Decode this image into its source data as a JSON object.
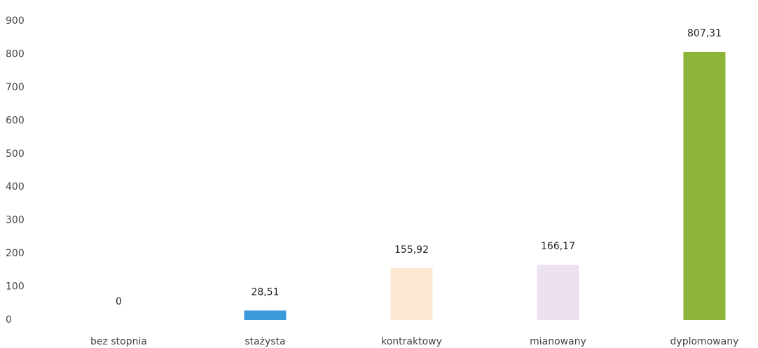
{
  "chart_data": {
    "type": "bar",
    "categories": [
      "bez stopnia",
      "stażysta",
      "kontraktowy",
      "mianowany",
      "dyplomowany"
    ],
    "values": [
      0,
      28.51,
      155.92,
      166.17,
      807.31
    ],
    "value_labels": [
      "0",
      "28,51",
      "155,92",
      "166,17",
      "807,31"
    ],
    "colors": [
      "#cccccc",
      "#3a9ad9",
      "#fde8d2",
      "#ece2ef",
      "#8db33a"
    ],
    "ylim": [
      0,
      900
    ],
    "yticks": [
      0,
      100,
      200,
      300,
      400,
      500,
      600,
      700,
      800,
      900
    ],
    "grid": false
  }
}
